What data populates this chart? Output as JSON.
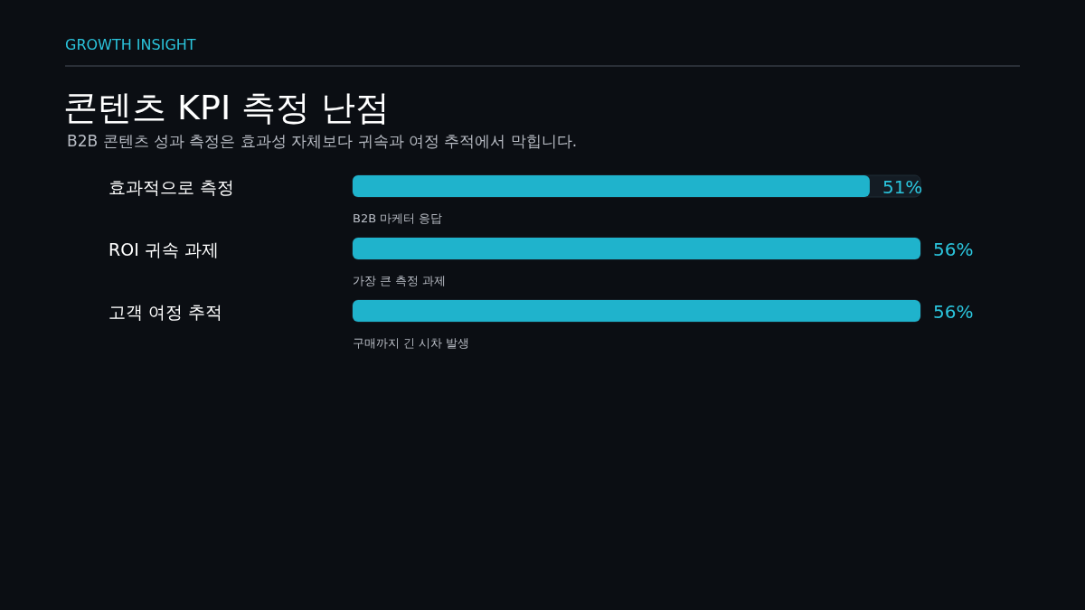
{
  "chart_data": {
    "type": "bar",
    "orientation": "horizontal",
    "title": "콘텐츠 KPI 측정 난점",
    "subtitle": "B2B 콘텐츠 성과 측정은 효과성 자체보다 귀속과 여정 추적에서 막힙니다.",
    "categories": [
      "효과적으로 측정",
      "ROI 귀속 과제",
      "고객 여정 추적"
    ],
    "values": [
      51,
      56,
      56
    ],
    "value_labels": [
      "51%",
      "56%",
      "56%"
    ],
    "color": "#1fb3cc",
    "annotations": [
      "GROWTH INSIGHT",
      "B2B 마케터 응답",
      "가장 큰 측정 과제",
      "구매까지 긴 시차 발생"
    ]
  }
}
